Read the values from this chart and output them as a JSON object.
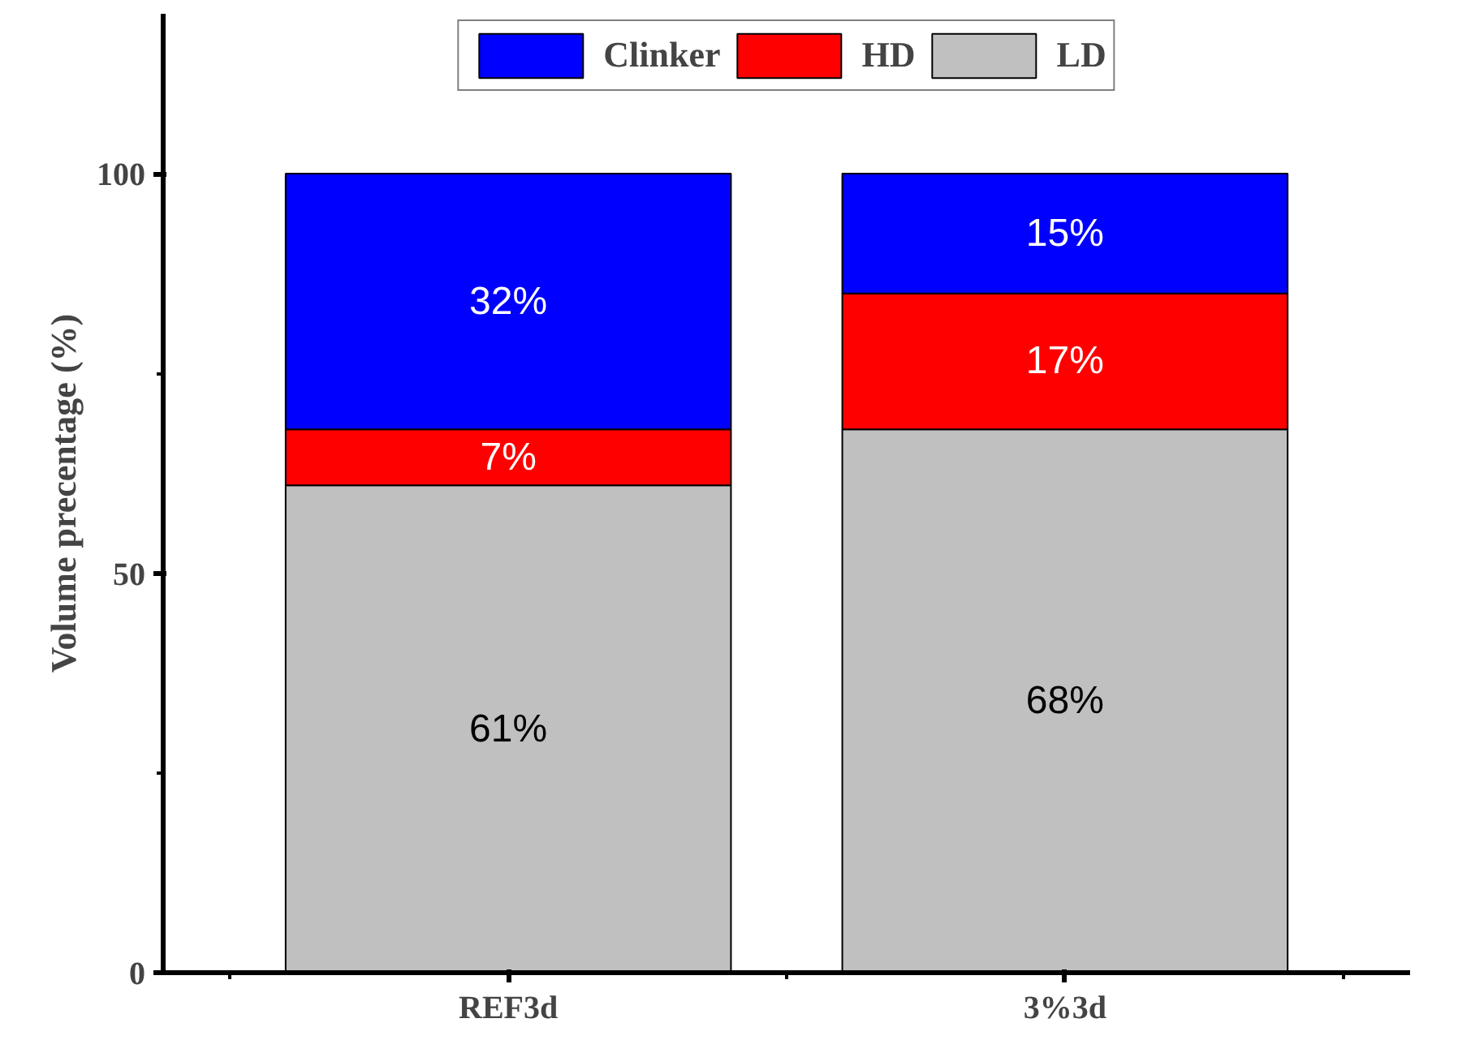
{
  "chart_data": {
    "type": "bar",
    "stacked": true,
    "ylabel": "Volume precentage (%)",
    "categories": [
      "REF3d",
      "3%3d"
    ],
    "series": [
      {
        "name": "LD",
        "color": "#c0c0c0",
        "values": [
          61,
          68
        ],
        "value_labels": [
          "61%",
          "68%"
        ]
      },
      {
        "name": "HD",
        "color": "#ff0000",
        "values": [
          7,
          17
        ],
        "value_labels": [
          "7%",
          "17%"
        ]
      },
      {
        "name": "Clinker",
        "color": "#0000ff",
        "values": [
          32,
          15
        ],
        "value_labels": [
          "32%",
          "15%"
        ]
      }
    ],
    "ylim": [
      0,
      120
    ],
    "yticks": [
      0,
      50,
      100
    ],
    "legend": "top",
    "grid": false
  }
}
